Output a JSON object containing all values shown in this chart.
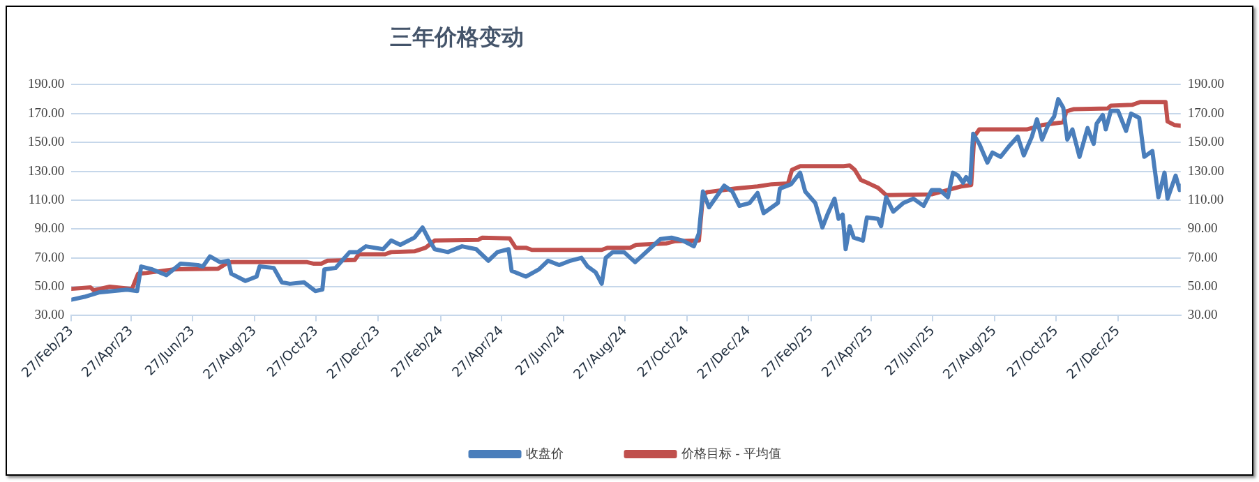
{
  "chart_data": {
    "type": "line",
    "title": "三年价格变动",
    "legend": "bottom",
    "grid": "y",
    "marker": "none",
    "line_style": "solid",
    "xlim": [
      "2023-02-27",
      "2026-02-27"
    ],
    "xticks": [
      {
        "value": "2023-02-27",
        "label": "27/Feb/23"
      },
      {
        "value": "2023-04-27",
        "label": "27/Apr/23"
      },
      {
        "value": "2023-06-27",
        "label": "27/Jun/23"
      },
      {
        "value": "2023-08-27",
        "label": "27/Aug/23"
      },
      {
        "value": "2023-10-27",
        "label": "27/Oct/23"
      },
      {
        "value": "2023-12-27",
        "label": "27/Dec/23"
      },
      {
        "value": "2024-02-27",
        "label": "27/Feb/24"
      },
      {
        "value": "2024-04-27",
        "label": "27/Apr/24"
      },
      {
        "value": "2024-06-27",
        "label": "27/Jun/24"
      },
      {
        "value": "2024-08-27",
        "label": "27/Aug/24"
      },
      {
        "value": "2024-10-27",
        "label": "27/Oct/24"
      },
      {
        "value": "2024-12-27",
        "label": "27/Dec/24"
      },
      {
        "value": "2025-02-27",
        "label": "27/Feb/25"
      },
      {
        "value": "2025-04-27",
        "label": "27/Apr/25"
      },
      {
        "value": "2025-06-27",
        "label": "27/Jun/25"
      },
      {
        "value": "2025-08-27",
        "label": "27/Aug/25"
      },
      {
        "value": "2025-10-27",
        "label": "27/Oct/25"
      },
      {
        "value": "2025-12-27",
        "label": "27/Dec/25"
      }
    ],
    "ylim": [
      30,
      190
    ],
    "yticks": [
      {
        "value": 30,
        "label": "30.00"
      },
      {
        "value": 50,
        "label": "50.00"
      },
      {
        "value": 70,
        "label": "70.00"
      },
      {
        "value": 90,
        "label": "90.00"
      },
      {
        "value": 110,
        "label": "110.00"
      },
      {
        "value": 130,
        "label": "130.00"
      },
      {
        "value": 150,
        "label": "150.00"
      },
      {
        "value": 170,
        "label": "170.00"
      },
      {
        "value": 190,
        "label": "190.00"
      }
    ],
    "y2lim": [
      30,
      190
    ],
    "y2ticks": [
      {
        "value": 30,
        "label": "30.00"
      },
      {
        "value": 50,
        "label": "50.00"
      },
      {
        "value": 70,
        "label": "70.00"
      },
      {
        "value": 90,
        "label": "90.00"
      },
      {
        "value": 110,
        "label": "110.00"
      },
      {
        "value": 130,
        "label": "130.00"
      },
      {
        "value": 150,
        "label": "150.00"
      },
      {
        "value": 170,
        "label": "170.00"
      },
      {
        "value": 190,
        "label": "190.00"
      }
    ],
    "series": [
      {
        "name": "收盘价",
        "color": "#4a7ebb",
        "x": [
          "2023-02-27",
          "2023-03-12",
          "2023-03-26",
          "2023-04-09",
          "2023-04-23",
          "2023-05-03",
          "2023-05-07",
          "2023-05-18",
          "2023-06-01",
          "2023-06-15",
          "2023-07-02",
          "2023-07-07",
          "2023-07-14",
          "2023-07-24",
          "2023-08-01",
          "2023-08-04",
          "2023-08-18",
          "2023-08-29",
          "2023-09-01",
          "2023-09-15",
          "2023-09-23",
          "2023-10-01",
          "2023-10-15",
          "2023-10-26",
          "2023-11-02",
          "2023-11-04",
          "2023-11-15",
          "2023-11-29",
          "2023-12-07",
          "2023-12-15",
          "2024-01-01",
          "2024-01-09",
          "2024-01-18",
          "2024-02-01",
          "2024-02-09",
          "2024-02-15",
          "2024-02-21",
          "2024-03-05",
          "2024-03-19",
          "2024-04-02",
          "2024-04-14",
          "2024-04-23",
          "2024-05-04",
          "2024-05-07",
          "2024-05-21",
          "2024-06-03",
          "2024-06-12",
          "2024-06-23",
          "2024-07-04",
          "2024-07-15",
          "2024-07-21",
          "2024-07-29",
          "2024-08-04",
          "2024-08-08",
          "2024-08-15",
          "2024-08-26",
          "2024-09-06",
          "2024-09-20",
          "2024-10-01",
          "2024-10-12",
          "2024-10-23",
          "2024-11-03",
          "2024-11-08",
          "2024-11-12",
          "2024-11-18",
          "2024-11-25",
          "2024-12-03",
          "2024-12-11",
          "2024-12-18",
          "2024-12-28",
          "2025-01-05",
          "2025-01-11",
          "2025-01-25",
          "2025-01-27",
          "2025-02-07",
          "2025-02-16",
          "2025-02-21",
          "2025-03-03",
          "2025-03-10",
          "2025-03-15",
          "2025-03-22",
          "2025-03-26",
          "2025-03-30",
          "2025-04-02",
          "2025-04-06",
          "2025-04-10",
          "2025-04-19",
          "2025-04-23",
          "2025-05-04",
          "2025-05-07",
          "2025-05-12",
          "2025-05-19",
          "2025-05-29",
          "2025-06-08",
          "2025-06-18",
          "2025-06-26",
          "2025-07-04",
          "2025-07-12",
          "2025-07-17",
          "2025-07-22",
          "2025-07-27",
          "2025-07-30",
          "2025-08-03",
          "2025-08-06",
          "2025-08-12",
          "2025-08-20",
          "2025-08-25",
          "2025-09-02",
          "2025-09-10",
          "2025-09-19",
          "2025-09-25",
          "2025-10-03",
          "2025-10-08",
          "2025-10-13",
          "2025-10-19",
          "2025-10-25",
          "2025-10-29",
          "2025-11-03",
          "2025-11-07",
          "2025-11-12",
          "2025-11-19",
          "2025-11-27",
          "2025-12-03",
          "2025-12-06",
          "2025-12-12",
          "2025-12-15",
          "2025-12-20",
          "2025-12-27",
          "2026-01-04",
          "2026-01-09",
          "2026-01-17",
          "2026-01-22",
          "2026-01-30",
          "2026-02-01",
          "2026-02-05",
          "2026-02-11",
          "2026-02-14",
          "2026-02-22",
          "2026-02-26",
          "2026-02-27"
        ],
        "values": [
          41,
          43,
          46,
          47,
          48,
          47,
          64,
          62,
          58,
          66,
          65,
          64,
          71,
          67,
          68,
          59,
          54,
          57,
          64,
          63,
          53,
          52,
          53,
          47,
          48,
          62,
          63,
          74,
          74,
          78,
          76,
          82,
          79,
          84,
          91,
          83,
          76,
          74,
          78,
          76,
          68,
          74,
          76,
          61,
          57,
          62,
          68,
          65,
          68,
          70,
          64,
          60,
          52,
          70,
          74,
          74,
          67,
          76,
          83,
          84,
          82,
          78,
          87,
          116,
          105,
          112,
          120,
          116,
          106,
          108,
          115,
          101,
          108,
          118,
          121,
          129,
          116,
          108,
          91,
          100,
          111,
          97,
          100,
          76,
          92,
          84,
          82,
          98,
          97,
          92,
          112,
          102,
          108,
          111,
          106,
          117,
          117,
          112,
          129,
          127,
          122,
          126,
          122,
          156,
          149,
          136,
          143,
          140,
          147,
          154,
          141,
          154,
          166,
          152,
          162,
          168,
          180,
          174,
          152,
          159,
          140,
          160,
          149,
          163,
          169,
          159,
          172,
          172,
          158,
          170,
          167,
          140,
          144,
          133,
          112,
          129,
          111,
          127,
          117,
          120
        ]
      },
      {
        "name": "价格目标 - 平均值",
        "color": "#c0504d",
        "x": [
          "2023-02-27",
          "2023-03-18",
          "2023-03-21",
          "2023-04-06",
          "2023-04-28",
          "2023-05-04",
          "2023-05-12",
          "2023-06-08",
          "2023-07-22",
          "2023-07-30",
          "2023-08-04",
          "2023-10-18",
          "2023-10-24",
          "2023-11-01",
          "2023-11-07",
          "2023-12-04",
          "2023-12-08",
          "2024-01-03",
          "2024-01-09",
          "2024-02-01",
          "2024-02-12",
          "2024-02-21",
          "2024-04-04",
          "2024-04-08",
          "2024-05-05",
          "2024-05-11",
          "2024-05-21",
          "2024-05-27",
          "2024-08-04",
          "2024-08-10",
          "2024-09-01",
          "2024-09-07",
          "2024-10-07",
          "2024-10-15",
          "2024-11-08",
          "2024-11-12",
          "2024-11-16",
          "2024-12-14",
          "2025-01-05",
          "2025-01-19",
          "2025-02-04",
          "2025-02-08",
          "2025-02-16",
          "2025-03-31",
          "2025-04-06",
          "2025-04-11",
          "2025-04-17",
          "2025-04-25",
          "2025-05-04",
          "2025-05-12",
          "2025-06-26",
          "2025-07-12",
          "2025-07-25",
          "2025-08-04",
          "2025-08-07",
          "2025-08-12",
          "2025-09-28",
          "2025-10-13",
          "2025-11-03",
          "2025-11-06",
          "2025-11-13",
          "2025-12-17",
          "2025-12-20",
          "2026-01-10",
          "2026-01-18",
          "2026-02-12",
          "2026-02-14",
          "2026-02-21",
          "2026-02-27"
        ],
        "values": [
          48.5,
          49.5,
          47.5,
          50,
          48.5,
          59,
          59.5,
          62,
          62.5,
          66,
          67,
          67,
          66,
          66,
          68,
          68.5,
          72.5,
          72.5,
          74,
          74.5,
          77,
          82,
          82.5,
          84,
          83.5,
          77,
          77,
          75.5,
          75.5,
          77,
          77,
          79,
          80,
          81.5,
          82,
          113,
          115.5,
          118,
          119.5,
          121,
          121.5,
          131,
          133.5,
          133.5,
          134,
          131,
          124,
          121.5,
          118.5,
          113.5,
          114,
          117,
          119.5,
          120.5,
          154,
          159,
          159,
          162,
          164,
          171.5,
          173,
          173.5,
          175.5,
          176,
          178,
          178,
          164.5,
          162,
          161.5
        ]
      }
    ]
  }
}
